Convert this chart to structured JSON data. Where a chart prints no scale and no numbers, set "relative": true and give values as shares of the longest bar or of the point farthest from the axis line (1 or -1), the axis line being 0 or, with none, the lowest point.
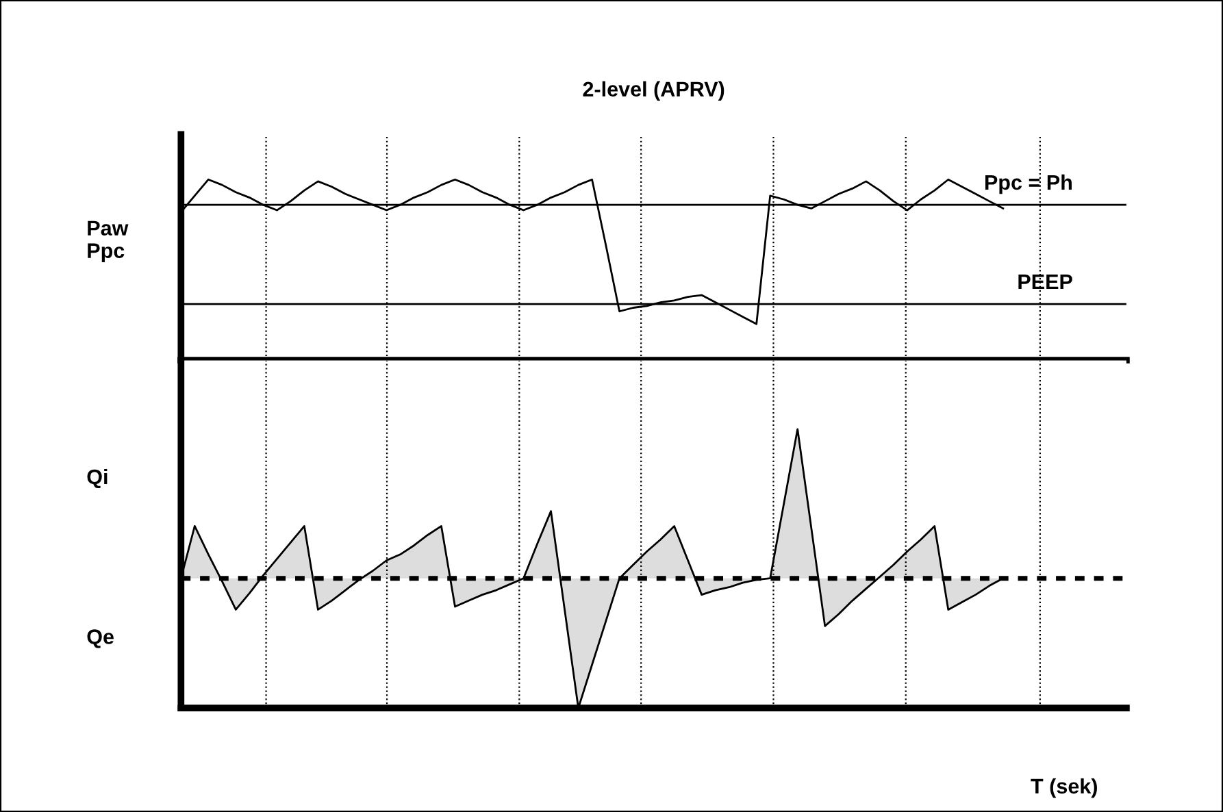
{
  "chart_data": [
    {
      "type": "line",
      "title": "2-level (APRV)",
      "ylabel": "Paw\nPpc",
      "relative": true,
      "categories": [
        null,
        null,
        null,
        null,
        null,
        null,
        null,
        null,
        null,
        null,
        null,
        null,
        null,
        null,
        null,
        null,
        null,
        null,
        null,
        null,
        null,
        null,
        null,
        null,
        null,
        null,
        null,
        null,
        null,
        null,
        null,
        null,
        null,
        null,
        null,
        null,
        null,
        null,
        null,
        null,
        null,
        null,
        null,
        null,
        null,
        null,
        null,
        null,
        null,
        null,
        null,
        null,
        null,
        null,
        null,
        null,
        null,
        null,
        null,
        null,
        null,
        null,
        null,
        null,
        null,
        null,
        null,
        null,
        null,
        null
      ],
      "series": [
        {
          "color": "#000000",
          "values": [
            0.82,
            0.91,
            1.0,
            0.97,
            0.93,
            0.9,
            0.86,
            0.83,
            0.88,
            0.94,
            0.99,
            0.96,
            0.92,
            0.89,
            0.86,
            0.83,
            0.86,
            0.9,
            0.93,
            0.97,
            1.0,
            0.97,
            0.93,
            0.9,
            0.86,
            0.83,
            0.86,
            0.9,
            0.93,
            0.97,
            1.0,
            0.64,
            0.27,
            0.29,
            0.3,
            0.32,
            0.33,
            0.35,
            0.36,
            0.32,
            0.28,
            0.24,
            0.2,
            0.91,
            0.89,
            0.86,
            0.84,
            0.88,
            0.92,
            0.95,
            0.99,
            0.94,
            0.88,
            0.83,
            0.89,
            0.94,
            1.0,
            0.96,
            0.92,
            0.88,
            0.84,
            null,
            null,
            null,
            null,
            null,
            null,
            null,
            null,
            null
          ]
        }
      ],
      "ref_lines": [
        {
          "axis": "y",
          "value": 0.86,
          "label": "Ppc = Ph",
          "color": "#000000"
        },
        {
          "axis": "y",
          "value": 0.31,
          "label": "PEEP",
          "color": "#000000"
        }
      ],
      "grid": "x"
    },
    {
      "type": "area",
      "xlabel": "T (sek)",
      "relative": true,
      "annotations": [
        "Qi",
        "Qe"
      ],
      "categories": [
        null,
        null,
        null,
        null,
        null,
        null,
        null,
        null,
        null,
        null,
        null,
        null,
        null,
        null,
        null,
        null,
        null,
        null,
        null,
        null,
        null,
        null,
        null,
        null,
        null,
        null,
        null,
        null,
        null,
        null,
        null,
        null,
        null,
        null,
        null,
        null,
        null,
        null,
        null,
        null,
        null,
        null,
        null,
        null,
        null,
        null,
        null,
        null,
        null,
        null,
        null,
        null,
        null,
        null,
        null,
        null,
        null,
        null,
        null,
        null,
        null,
        null,
        null,
        null,
        null,
        null,
        null,
        null,
        null,
        null
      ],
      "series": [
        {
          "color": "#dddddd",
          "values": [
            0,
            0.35,
            0.16,
            -0.02,
            -0.21,
            -0.1,
            0.02,
            0.13,
            0.24,
            0.35,
            -0.21,
            -0.15,
            -0.08,
            -0.01,
            0.05,
            0.12,
            0.16,
            0.22,
            0.29,
            0.35,
            -0.19,
            -0.15,
            -0.11,
            -0.08,
            -0.04,
            0,
            0.23,
            0.45,
            -0.21,
            -0.87,
            -0.58,
            -0.29,
            0,
            0.09,
            0.18,
            0.26,
            0.35,
            0.12,
            -0.11,
            -0.08,
            -0.06,
            -0.03,
            -0.01,
            0,
            0.5,
            1,
            0.34,
            -0.32,
            -0.24,
            -0.15,
            -0.07,
            0.01,
            0.09,
            0.18,
            0.26,
            0.35,
            -0.21,
            -0.16,
            -0.11,
            -0.05,
            0,
            null,
            null,
            null,
            null,
            null,
            null,
            null,
            null,
            null
          ]
        }
      ],
      "ref_lines": [
        {
          "axis": "y",
          "value": 0,
          "line_style": "dashed",
          "color": "#000000"
        }
      ],
      "grid": "x"
    }
  ]
}
